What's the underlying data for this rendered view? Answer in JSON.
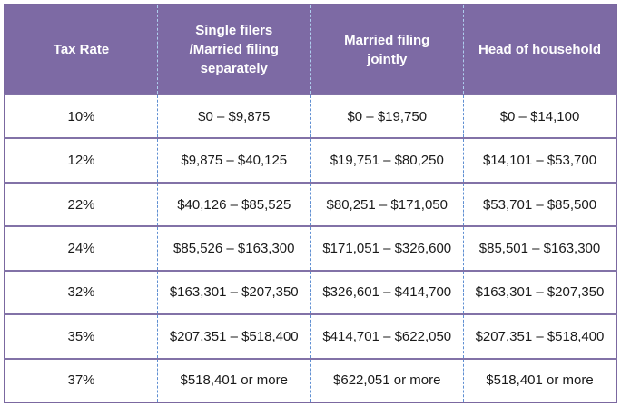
{
  "colors": {
    "header_bg": "#7d6aa4",
    "header_text": "#ffffff",
    "body_text": "#1a1a1a",
    "table_border": "#7b68a0",
    "row_divider": "#8272a7",
    "header_column_divider": "#aecfee",
    "body_column_divider": "#5f8fd2",
    "cell_bg": "#ffffff"
  },
  "chart_data": {
    "type": "table",
    "columns": [
      "Tax Rate",
      "Single filers /Married filing separately",
      "Married filing jointly",
      "Head of household"
    ],
    "rows": [
      [
        "10%",
        "$0 – $9,875",
        "$0 – $19,750",
        "$0 – $14,100"
      ],
      [
        "12%",
        "$9,875 – $40,125",
        "$19,751 – $80,250",
        "$14,101 – $53,700"
      ],
      [
        "22%",
        "$40,126 – $85,525",
        "$80,251 – $171,050",
        "$53,701 – $85,500"
      ],
      [
        "24%",
        "$85,526 – $163,300",
        "$171,051 – $326,600",
        "$85,501 – $163,300"
      ],
      [
        "32%",
        "$163,301 – $207,350",
        "$326,601 – $414,700",
        "$163,301 – $207,350"
      ],
      [
        "35%",
        "$207,351 – $518,400",
        "$414,701 – $622,050",
        "$207,351 – $518,400"
      ],
      [
        "37%",
        "$518,401 or more",
        "$622,051 or more",
        "$518,401 or more"
      ]
    ],
    "layout": {
      "grid": "purple horizontal row dividers, blue dashed column dividers",
      "header_style": "purple background, white bold text"
    }
  }
}
